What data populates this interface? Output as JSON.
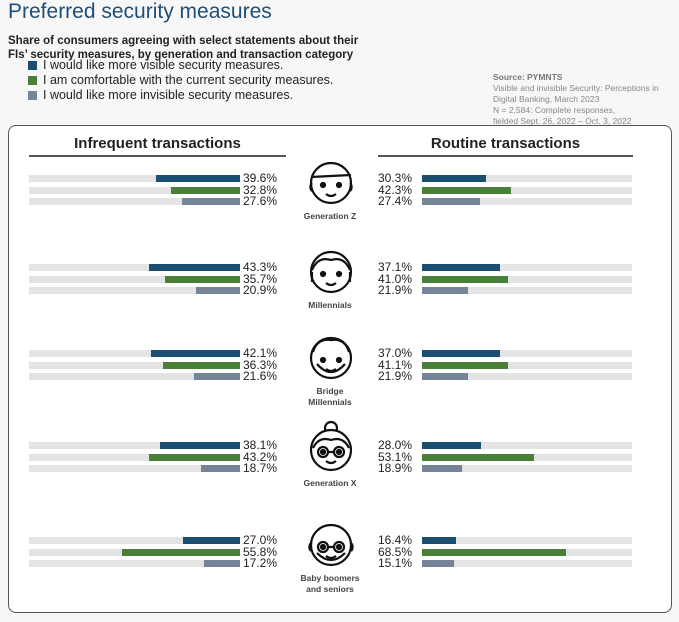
{
  "title": "Preferred security measures",
  "subtitle": "Share of consumers agreeing with select statements about their FIs’ security measures, by generation and transaction category",
  "legend": [
    {
      "label": "I would like more visible security measures.",
      "color": "#1b4f72"
    },
    {
      "label": "I am comfortable with the current security measures.",
      "color": "#4a7f3a"
    },
    {
      "label": "I would like more invisible security measures.",
      "color": "#76849a"
    }
  ],
  "source": {
    "heading": "Source: PYMNTS",
    "lines": [
      "Visible and invisible Security: Perceptions in",
      "Digital Banking, March 2023",
      "N = 2,584: Complete responses,",
      "fielded Sept. 26, 2022 – Oct. 3, 2022"
    ]
  },
  "chart_data": {
    "type": "bar",
    "panels": [
      "Infrequent transactions",
      "Routine transactions"
    ],
    "series": [
      "I would like more visible security measures.",
      "I am comfortable with the current security measures.",
      "I would like more invisible security measures."
    ],
    "unit": "%",
    "xlim": [
      0,
      100
    ],
    "groups": [
      {
        "name": "Generation Z",
        "icon": "genz",
        "infrequent": [
          39.6,
          32.8,
          27.6
        ],
        "routine": [
          30.3,
          42.3,
          27.4
        ]
      },
      {
        "name": "Millennials",
        "icon": "millennial",
        "infrequent": [
          43.3,
          35.7,
          20.9
        ],
        "routine": [
          37.1,
          41.0,
          21.9
        ]
      },
      {
        "name": "Bridge Millennials",
        "icon": "bridge",
        "infrequent": [
          42.1,
          36.3,
          21.6
        ],
        "routine": [
          37.0,
          41.1,
          21.9
        ]
      },
      {
        "name": "Generation X",
        "icon": "genx",
        "infrequent": [
          38.1,
          43.2,
          18.7
        ],
        "routine": [
          28.0,
          53.1,
          18.9
        ]
      },
      {
        "name": "Baby boomers and seniors",
        "icon": "boomer",
        "infrequent": [
          27.0,
          55.8,
          17.2
        ],
        "routine": [
          16.4,
          68.5,
          15.1
        ]
      }
    ]
  }
}
